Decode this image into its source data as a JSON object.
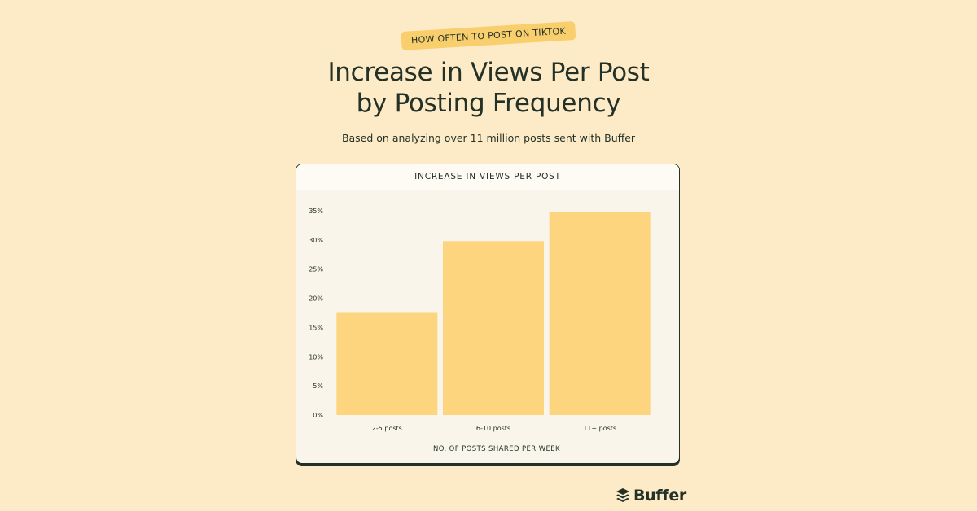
{
  "header": {
    "tag": "HOW OFTEN TO POST ON TIKTOK",
    "title_line1": "Increase in Views Per Post",
    "title_line2": "by Posting Frequency",
    "subtitle": "Based on analyzing over 11 million posts sent with Buffer"
  },
  "card": {
    "title": "INCREASE IN VIEWS PER POST"
  },
  "brand": {
    "name": "Buffer",
    "icon": "stacked-layers-icon"
  },
  "colors": {
    "background": "#fdeac6",
    "bar": "#fdd57e",
    "tag": "#f9cf6e",
    "text": "#233127"
  },
  "chart_data": {
    "type": "bar",
    "title": "INCREASE IN VIEWS PER POST",
    "categories": [
      "2-5 posts",
      "6-10 posts",
      "11+ posts"
    ],
    "values": [
      17.5,
      29.8,
      34.8
    ],
    "xlabel": "NO. OF POSTS SHARED PER WEEK",
    "ylabel": "",
    "ylim": [
      0,
      35
    ],
    "yticks": [
      0,
      5,
      10,
      15,
      20,
      25,
      30,
      35
    ],
    "ytick_labels": [
      "0%",
      "5%",
      "10%",
      "15%",
      "20%",
      "25%",
      "30%",
      "35%"
    ],
    "grid": false
  }
}
